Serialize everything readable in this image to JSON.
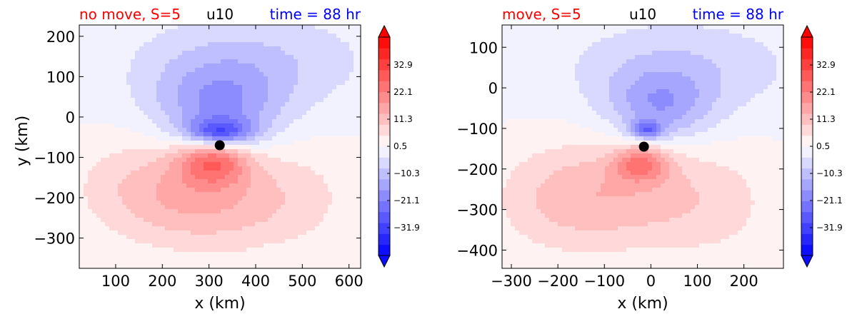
{
  "colors": {
    "neg": "#0000ff",
    "mid": "#ffffff",
    "pos": "#ff0000",
    "title_left": "#ff0000",
    "title_center": "#000000",
    "title_right": "#0000ff",
    "marker": "#000000"
  },
  "colorbar": {
    "range": [
      -43,
      44
    ],
    "ticks": [
      32.9,
      22.1,
      11.3,
      0.5,
      -10.3,
      -21.1,
      -31.9
    ],
    "tick_labels": [
      "32.9",
      "22.1",
      "11.3",
      "0.5",
      "−10.3",
      "−21.1",
      "−31.9"
    ],
    "extend": "both"
  },
  "chart_data": [
    {
      "type": "heatmap",
      "variable": "u10",
      "title_left": "no move, S=5",
      "title_center": "u10",
      "title_right": "time = 88 hr",
      "xlabel": "x (km)",
      "ylabel": "y (km)",
      "xlim": [
        22,
        625
      ],
      "ylim": [
        -375,
        228
      ],
      "xticks": [
        100,
        200,
        300,
        400,
        500,
        600
      ],
      "xtick_labels": [
        "100",
        "200",
        "300",
        "400",
        "500",
        "600"
      ],
      "yticks": [
        200,
        100,
        0,
        -100,
        -200,
        -300
      ],
      "ytick_labels": [
        "200",
        "100",
        "0",
        "−100",
        "−200",
        "−300"
      ],
      "center": [
        323,
        -70
      ],
      "field_features": [
        {
          "x": 323,
          "y": -40,
          "value": -26,
          "sx": 70,
          "sy": 35
        },
        {
          "x": 320,
          "y": 20,
          "value": -16,
          "sx": 140,
          "sy": 110
        },
        {
          "x": 390,
          "y": 140,
          "value": -8,
          "sx": 260,
          "sy": 120
        },
        {
          "x": 310,
          "y": -105,
          "value": 22,
          "sx": 75,
          "sy": 60
        },
        {
          "x": 300,
          "y": -200,
          "value": 12,
          "sx": 180,
          "sy": 130
        },
        {
          "x": 150,
          "y": -170,
          "value": 6,
          "sx": 160,
          "sy": 130
        },
        {
          "x": 500,
          "y": -200,
          "value": 4,
          "sx": 150,
          "sy": 150
        },
        {
          "x": 440,
          "y": -340,
          "value": -2,
          "sx": 20,
          "sy": 20
        }
      ]
    },
    {
      "type": "heatmap",
      "variable": "u10",
      "title_left": "move, S=5",
      "title_center": "u10",
      "title_right": "time = 88 hr",
      "xlabel": "x (km)",
      "ylabel": "",
      "xlim": [
        -320,
        285
      ],
      "ylim": [
        -445,
        155
      ],
      "xticks": [
        -300,
        -200,
        -100,
        0,
        100,
        200
      ],
      "xtick_labels": [
        "−300",
        "−200",
        "−100",
        "0",
        "100",
        "200"
      ],
      "yticks": [
        100,
        0,
        -100,
        -200,
        -300,
        -400
      ],
      "ytick_labels": [
        "100",
        "0",
        "−100",
        "−200",
        "−300",
        "−400"
      ],
      "center": [
        -15,
        -145
      ],
      "field_features": [
        {
          "x": -10,
          "y": -105,
          "value": -20,
          "sx": 35,
          "sy": 22
        },
        {
          "x": 20,
          "y": -50,
          "value": -14,
          "sx": 110,
          "sy": 90
        },
        {
          "x": 60,
          "y": 50,
          "value": -8,
          "sx": 250,
          "sy": 120
        },
        {
          "x": -20,
          "y": -185,
          "value": 18,
          "sx": 60,
          "sy": 45
        },
        {
          "x": -50,
          "y": -260,
          "value": 10,
          "sx": 200,
          "sy": 130
        },
        {
          "x": -200,
          "y": -280,
          "value": 6,
          "sx": 150,
          "sy": 140
        },
        {
          "x": 150,
          "y": -300,
          "value": 4,
          "sx": 160,
          "sy": 160
        }
      ]
    }
  ]
}
